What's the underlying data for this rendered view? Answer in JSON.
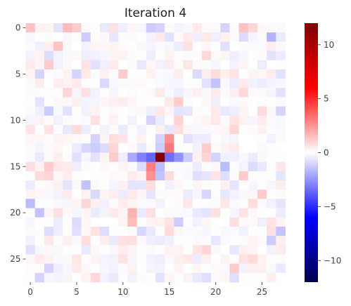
{
  "chart_data": {
    "type": "heatmap",
    "title": "Iteration 4",
    "xlabel": "",
    "ylabel": "",
    "rows": 28,
    "cols": 28,
    "x_ticks": [
      0,
      5,
      10,
      15,
      20,
      25
    ],
    "y_ticks": [
      0,
      5,
      10,
      15,
      20,
      25
    ],
    "colormap": "seismic",
    "vmin": -12,
    "vmax": 12,
    "colorbar_ticks": [
      10,
      5,
      0,
      -5,
      -10
    ],
    "colorbar_tick_labels": [
      "10",
      "5",
      "0",
      "−5",
      "−10"
    ],
    "background_noise_amplitude": 1.1,
    "cells": [
      {
        "r": 14,
        "c": 14,
        "v": 12
      },
      {
        "r": 13,
        "c": 15,
        "v": 3.2
      },
      {
        "r": 12,
        "c": 15,
        "v": 2.6
      },
      {
        "r": 15,
        "c": 13,
        "v": 3.0
      },
      {
        "r": 16,
        "c": 13,
        "v": 2.6
      },
      {
        "r": 14,
        "c": 12,
        "v": -3.0
      },
      {
        "r": 14,
        "c": 13,
        "v": -3.6
      },
      {
        "r": 14,
        "c": 15,
        "v": -3.4
      },
      {
        "r": 14,
        "c": 16,
        "v": -2.6
      },
      {
        "r": 15,
        "c": 14,
        "v": -1.6
      },
      {
        "r": 16,
        "c": 14,
        "v": -1.4
      },
      {
        "r": 13,
        "c": 14,
        "v": -1.2
      },
      {
        "r": 12,
        "c": 14,
        "v": -1.0
      },
      {
        "r": 14,
        "c": 11,
        "v": -2.0
      },
      {
        "r": 14,
        "c": 17,
        "v": -1.2
      },
      {
        "r": 14,
        "c": 19,
        "v": 1.0
      },
      {
        "r": 13,
        "c": 19,
        "v": 1.2
      },
      {
        "r": 14,
        "c": 20,
        "v": -1.0
      },
      {
        "r": 15,
        "c": 21,
        "v": -1.6
      },
      {
        "r": 14,
        "c": 9,
        "v": 1.2
      },
      {
        "r": 13,
        "c": 9,
        "v": 1.0
      },
      {
        "r": 13,
        "c": 7,
        "v": -1.2
      },
      {
        "r": 12,
        "c": 7,
        "v": -1.0
      },
      {
        "r": 0,
        "c": 0,
        "v": 1.4
      },
      {
        "r": 0,
        "c": 4,
        "v": 1.6
      },
      {
        "r": 0,
        "c": 5,
        "v": 1.2
      },
      {
        "r": 0,
        "c": 13,
        "v": -1.2
      },
      {
        "r": 0,
        "c": 14,
        "v": -1.0
      },
      {
        "r": 0,
        "c": 21,
        "v": -1.0
      },
      {
        "r": 0,
        "c": 23,
        "v": 1.4
      },
      {
        "r": 0,
        "c": 24,
        "v": 1.0
      },
      {
        "r": 1,
        "c": 6,
        "v": -1.2
      },
      {
        "r": 1,
        "c": 26,
        "v": -1.8
      },
      {
        "r": 2,
        "c": 3,
        "v": 1.4
      },
      {
        "r": 4,
        "c": 2,
        "v": 1.2
      },
      {
        "r": 5,
        "c": 1,
        "v": -1.0
      },
      {
        "r": 5,
        "c": 10,
        "v": 1.2
      },
      {
        "r": 6,
        "c": 20,
        "v": -1.4
      },
      {
        "r": 7,
        "c": 4,
        "v": 1.0
      },
      {
        "r": 8,
        "c": 16,
        "v": 1.2
      },
      {
        "r": 9,
        "c": 2,
        "v": -1.2
      },
      {
        "r": 9,
        "c": 27,
        "v": -1.0
      },
      {
        "r": 10,
        "c": 13,
        "v": -1.0
      },
      {
        "r": 11,
        "c": 22,
        "v": 1.0
      },
      {
        "r": 15,
        "c": 2,
        "v": 1.2
      },
      {
        "r": 16,
        "c": 23,
        "v": 1.2
      },
      {
        "r": 17,
        "c": 6,
        "v": -1.4
      },
      {
        "r": 18,
        "c": 25,
        "v": 1.2
      },
      {
        "r": 19,
        "c": 0,
        "v": -1.6
      },
      {
        "r": 20,
        "c": 1,
        "v": -1.4
      },
      {
        "r": 20,
        "c": 11,
        "v": 1.8
      },
      {
        "r": 21,
        "c": 11,
        "v": 1.6
      },
      {
        "r": 21,
        "c": 16,
        "v": -1.2
      },
      {
        "r": 22,
        "c": 27,
        "v": -1.4
      },
      {
        "r": 23,
        "c": 26,
        "v": -1.2
      },
      {
        "r": 24,
        "c": 19,
        "v": 1.0
      },
      {
        "r": 26,
        "c": 2,
        "v": -1.0
      },
      {
        "r": 26,
        "c": 22,
        "v": 1.2
      },
      {
        "r": 27,
        "c": 1,
        "v": -1.0
      }
    ]
  }
}
